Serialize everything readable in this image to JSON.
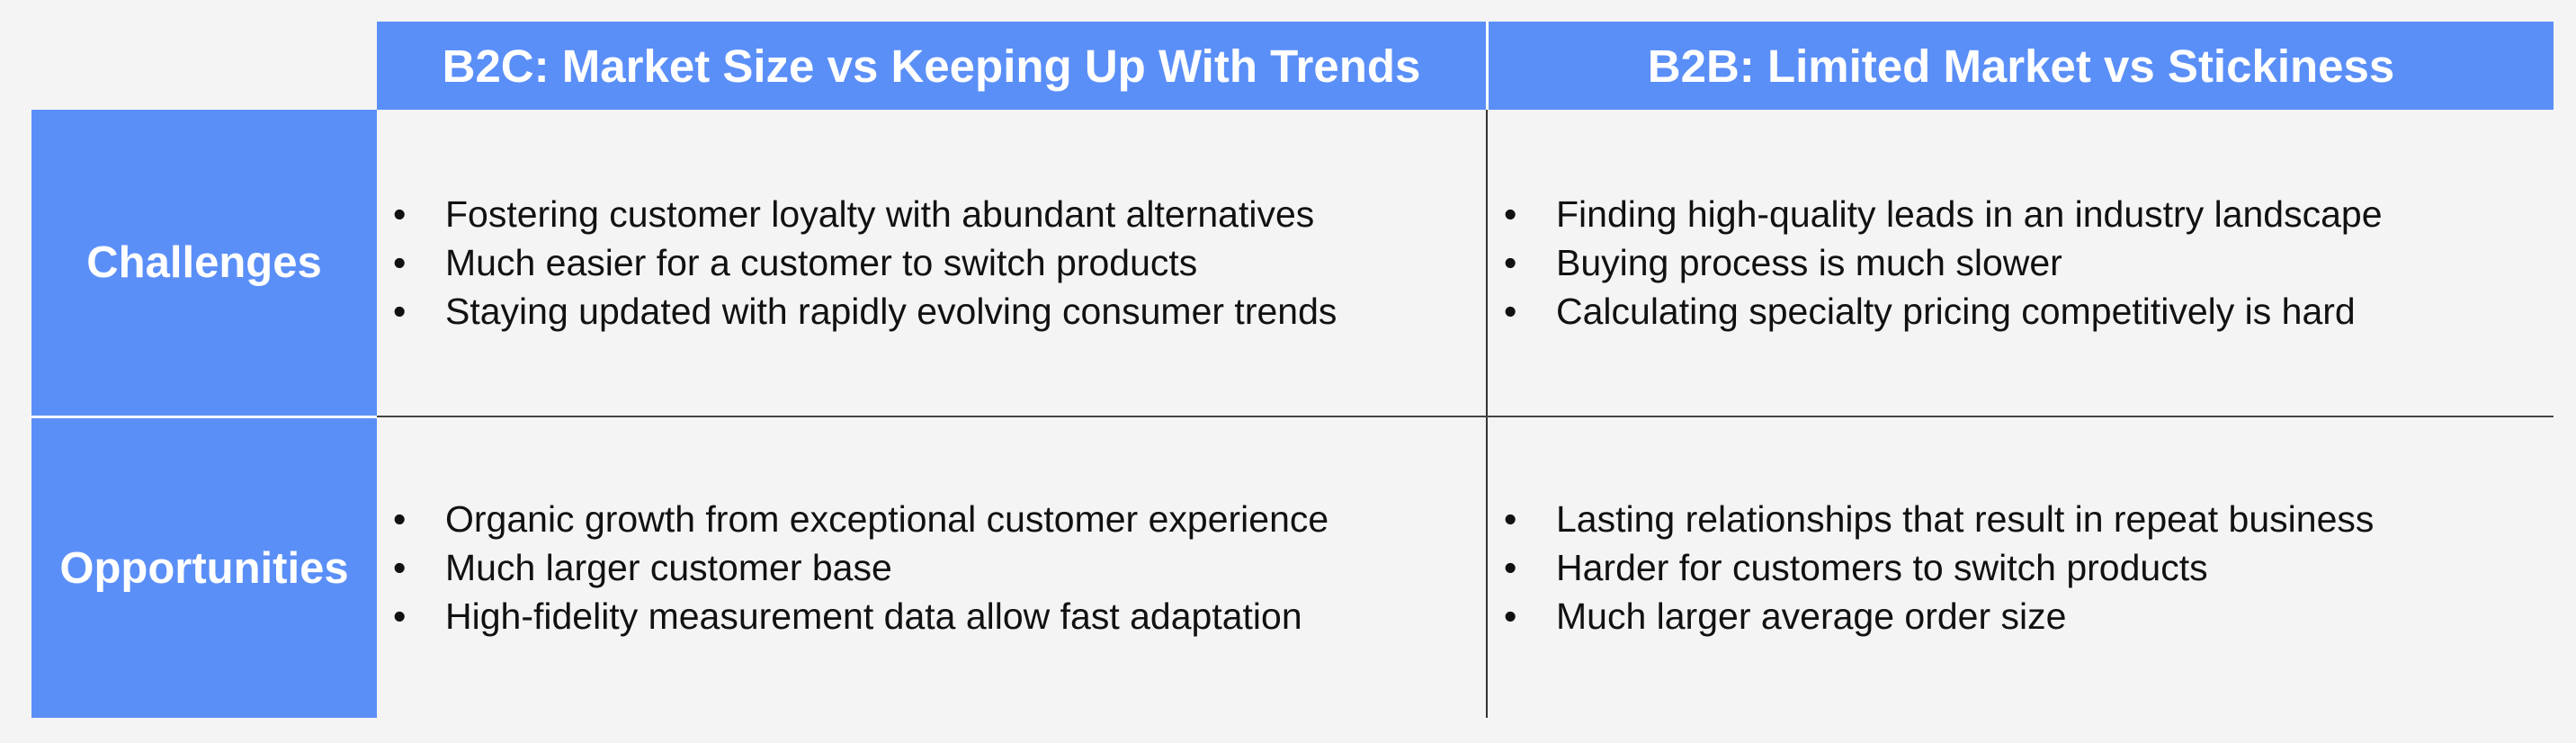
{
  "colors": {
    "header_fill": "#5b8ff8",
    "background": "#f4f4f4",
    "text": "#111111",
    "header_text": "#ffffff"
  },
  "columns": [
    {
      "header": "B2C: Market Size vs Keeping Up With Trends",
      "challenges": [
        "Fostering customer loyalty with abundant alternatives",
        "Much easier for a customer to switch products",
        "Staying updated with rapidly evolving consumer trends"
      ],
      "opportunities": [
        "Organic growth from exceptional customer experience",
        "Much larger customer base",
        "High-fidelity measurement data allow fast adaptation"
      ]
    },
    {
      "header": "B2B: Limited Market vs Stickiness",
      "challenges": [
        "Finding high-quality leads in an industry landscape",
        "Buying process is much slower",
        "Calculating specialty pricing competitively is hard"
      ],
      "opportunities": [
        "Lasting relationships that result in repeat business",
        "Harder for customers to switch products",
        "Much larger average order size"
      ]
    }
  ],
  "rows": {
    "challenges": "Challenges",
    "opportunities": "Opportunities"
  }
}
